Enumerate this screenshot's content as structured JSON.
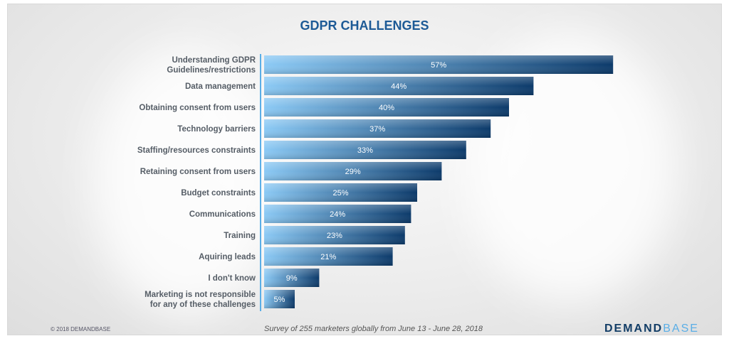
{
  "chart_data": {
    "type": "bar",
    "orientation": "horizontal",
    "title": "GDPR CHALLENGES",
    "categories": [
      "Understanding GDPR|Guidelines/restrictions",
      "Data management",
      "Obtaining consent from users",
      "Technology barriers",
      "Staffing/resources constraints",
      "Retaining consent from users",
      "Budget constraints",
      "Communications",
      "Training",
      "Aquiring leads",
      "I don't know",
      "Marketing is not responsible|for any of these challenges"
    ],
    "values": [
      57,
      44,
      40,
      37,
      33,
      29,
      25,
      24,
      23,
      21,
      9,
      5
    ],
    "data_labels": [
      "57%",
      "44%",
      "40%",
      "37%",
      "33%",
      "29%",
      "25%",
      "24%",
      "23%",
      "21%",
      "9%",
      "5%"
    ],
    "unit": "%",
    "grid": false,
    "bar_gradient": [
      "#8ccaf5",
      "#0c3a6a"
    ],
    "axis_color": "#5aaee6"
  },
  "footer": {
    "copyright": "© 2018 DEMANDBASE",
    "survey_note": "Survey of 255 marketers globally from June 13 - June 28, 2018",
    "logo_part1": "DEMAND",
    "logo_part2": "BASE"
  }
}
